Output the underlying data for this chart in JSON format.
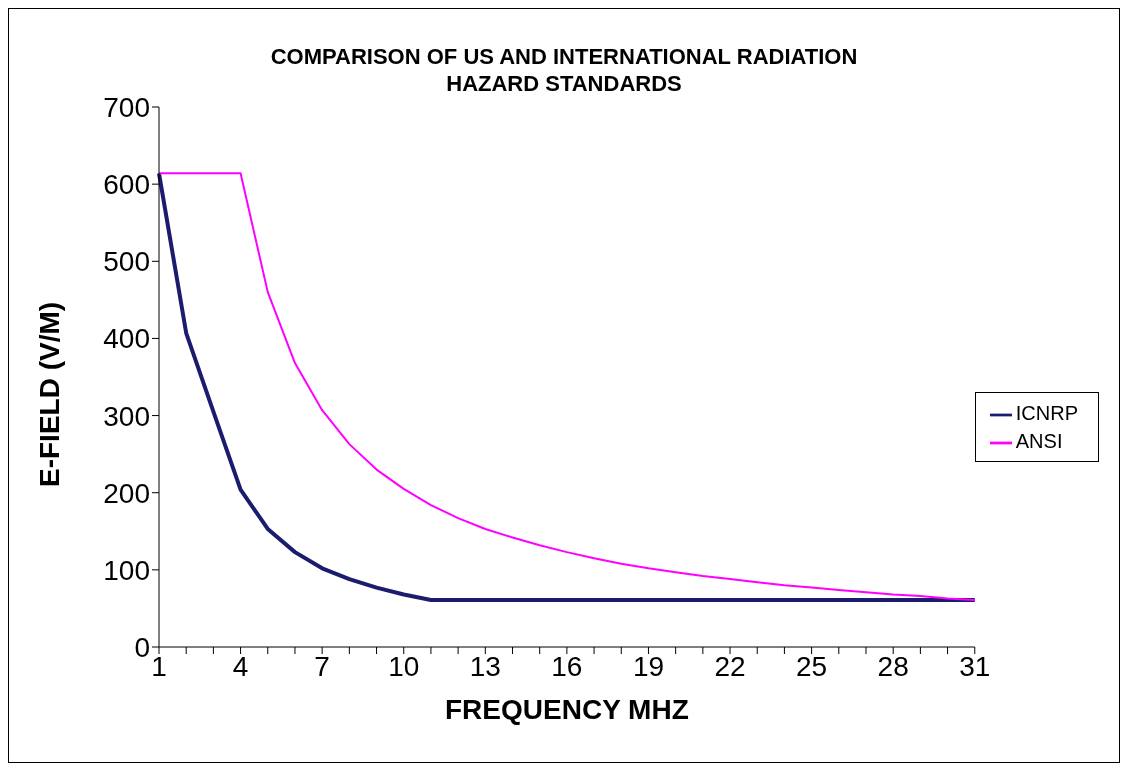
{
  "chart_data": {
    "type": "line",
    "title": "COMPARISON OF US AND INTERNATIONAL RADIATION HAZARD STANDARDS",
    "xlabel": "FREQUENCY MHZ",
    "ylabel": "E-FIELD (V/M)",
    "categories": [
      "1",
      null,
      null,
      "4",
      null,
      null,
      "7",
      null,
      null,
      "10",
      null,
      null,
      "13",
      null,
      null,
      "16",
      null,
      null,
      "19",
      null,
      null,
      "22",
      null,
      null,
      "25",
      null,
      null,
      "28",
      null,
      null,
      "31"
    ],
    "series": [
      {
        "name": "ICNRP",
        "color": "#1c1c6e",
        "values": [
          614,
          407,
          305,
          204,
          153,
          123,
          102,
          88,
          77,
          68,
          61,
          61,
          61,
          61,
          61,
          61,
          61,
          61,
          61,
          61,
          61,
          61,
          61,
          61,
          61,
          61,
          61,
          61,
          61,
          61,
          61
        ]
      },
      {
        "name": "ANSI",
        "color": "#ff00ff",
        "values": [
          614,
          614,
          614,
          614,
          460,
          368,
          307,
          263,
          230,
          205,
          184,
          167,
          153,
          142,
          132,
          123,
          115,
          108,
          102,
          97,
          92,
          88,
          84,
          80,
          77,
          74,
          71,
          68,
          66,
          63,
          61
        ]
      }
    ],
    "ylim": [
      0,
      700
    ],
    "yticks": [
      0,
      100,
      200,
      300,
      400,
      500,
      600,
      700
    ],
    "grid": false,
    "legend": "right",
    "marker": "none",
    "line_style": "solid"
  }
}
